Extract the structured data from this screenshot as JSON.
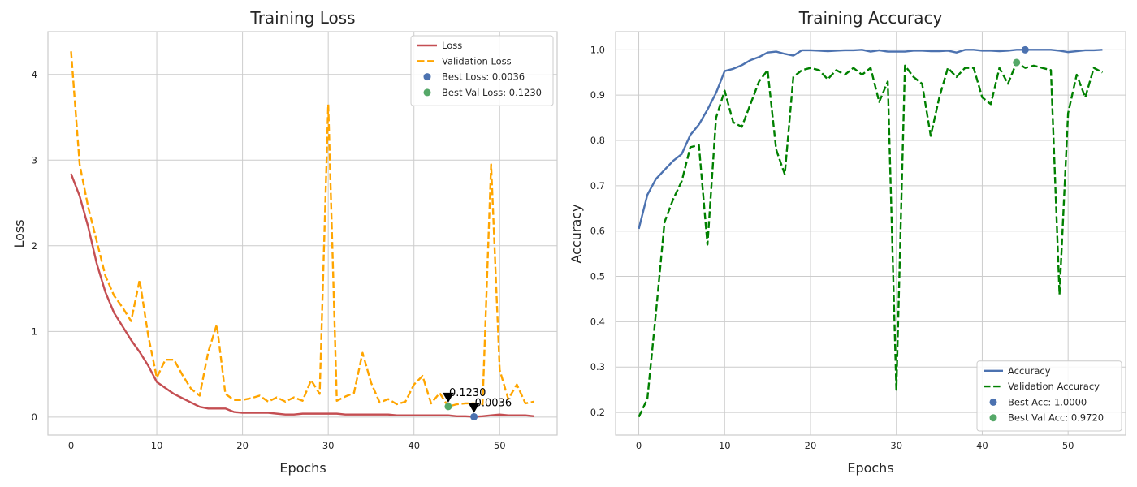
{
  "chart_data": [
    {
      "type": "line",
      "title": "Training Loss",
      "xlabel": "Epochs",
      "ylabel": "Loss",
      "xlim": [
        -2.7,
        56.7
      ],
      "ylim": [
        -0.21,
        4.5
      ],
      "xticks": [
        0,
        10,
        20,
        30,
        40,
        50
      ],
      "xtick_labels": [
        "0",
        "10",
        "20",
        "30",
        "40",
        "50"
      ],
      "yticks": [
        0,
        1,
        2,
        3,
        4
      ],
      "ytick_labels": [
        "0",
        "1",
        "2",
        "3",
        "4"
      ],
      "grid": true,
      "legend_position": "top-right",
      "x": [
        0,
        1,
        2,
        3,
        4,
        5,
        6,
        7,
        8,
        9,
        10,
        11,
        12,
        13,
        14,
        15,
        16,
        17,
        18,
        19,
        20,
        21,
        22,
        23,
        24,
        25,
        26,
        27,
        28,
        29,
        30,
        31,
        32,
        33,
        34,
        35,
        36,
        37,
        38,
        39,
        40,
        41,
        42,
        43,
        44,
        45,
        46,
        47,
        48,
        49,
        50,
        51,
        52,
        53,
        54
      ],
      "series": [
        {
          "name": "Loss",
          "color": "#c44e52",
          "style": "solid",
          "values": [
            2.84,
            2.58,
            2.22,
            1.79,
            1.46,
            1.22,
            1.06,
            0.9,
            0.76,
            0.6,
            0.41,
            0.34,
            0.27,
            0.22,
            0.17,
            0.12,
            0.1,
            0.1,
            0.1,
            0.06,
            0.05,
            0.05,
            0.05,
            0.05,
            0.04,
            0.03,
            0.03,
            0.04,
            0.04,
            0.04,
            0.04,
            0.04,
            0.03,
            0.03,
            0.03,
            0.03,
            0.03,
            0.03,
            0.02,
            0.02,
            0.02,
            0.02,
            0.02,
            0.02,
            0.02,
            0.01,
            0.01,
            0.0036,
            0.01,
            0.02,
            0.03,
            0.02,
            0.02,
            0.02,
            0.01
          ]
        },
        {
          "name": "Validation Loss",
          "color": "#ffa500",
          "style": "dashed",
          "values": [
            4.27,
            2.95,
            2.45,
            2.05,
            1.65,
            1.42,
            1.28,
            1.12,
            1.6,
            0.95,
            0.46,
            0.67,
            0.67,
            0.49,
            0.33,
            0.25,
            0.76,
            1.08,
            0.27,
            0.2,
            0.2,
            0.22,
            0.25,
            0.18,
            0.23,
            0.18,
            0.23,
            0.19,
            0.43,
            0.27,
            3.65,
            0.19,
            0.24,
            0.28,
            0.75,
            0.4,
            0.17,
            0.21,
            0.15,
            0.18,
            0.38,
            0.48,
            0.16,
            0.28,
            0.123,
            0.15,
            0.16,
            0.16,
            0.15,
            2.95,
            0.55,
            0.21,
            0.38,
            0.16,
            0.18
          ]
        }
      ],
      "markers": [
        {
          "name": "Best Loss: 0.0036",
          "x": 47,
          "y": 0.0036,
          "color": "#4c72b0"
        },
        {
          "name": "Best Val Loss: 0.1230",
          "x": 44,
          "y": 0.123,
          "color": "#55a868"
        }
      ],
      "annotations": [
        {
          "text": "0.1230",
          "x": 44,
          "y": 0.123,
          "arrow_tip_y": 0.17
        },
        {
          "text": "0.0036",
          "x": 47,
          "y": 0.0036,
          "arrow_tip_y": 0.05
        }
      ]
    },
    {
      "type": "line",
      "title": "Training Accuracy",
      "xlabel": "Epochs",
      "ylabel": "Accuracy",
      "xlim": [
        -2.7,
        56.7
      ],
      "ylim": [
        0.15,
        1.04
      ],
      "xticks": [
        0,
        10,
        20,
        30,
        40,
        50
      ],
      "xtick_labels": [
        "0",
        "10",
        "20",
        "30",
        "40",
        "50"
      ],
      "yticks": [
        0.2,
        0.3,
        0.4,
        0.5,
        0.6,
        0.7,
        0.8,
        0.9,
        1.0
      ],
      "ytick_labels": [
        "0.2",
        "0.3",
        "0.4",
        "0.5",
        "0.6",
        "0.7",
        "0.8",
        "0.9",
        "1.0"
      ],
      "grid": true,
      "legend_position": "bottom-right",
      "x": [
        0,
        1,
        2,
        3,
        4,
        5,
        6,
        7,
        8,
        9,
        10,
        11,
        12,
        13,
        14,
        15,
        16,
        17,
        18,
        19,
        20,
        21,
        22,
        23,
        24,
        25,
        26,
        27,
        28,
        29,
        30,
        31,
        32,
        33,
        34,
        35,
        36,
        37,
        38,
        39,
        40,
        41,
        42,
        43,
        44,
        45,
        46,
        47,
        48,
        49,
        50,
        51,
        52,
        53,
        54
      ],
      "series": [
        {
          "name": "Accuracy",
          "color": "#4c72b0",
          "style": "solid",
          "values": [
            0.605,
            0.68,
            0.715,
            0.735,
            0.755,
            0.77,
            0.812,
            0.835,
            0.868,
            0.905,
            0.953,
            0.958,
            0.966,
            0.977,
            0.984,
            0.994,
            0.996,
            0.991,
            0.987,
            0.999,
            0.999,
            0.998,
            0.997,
            0.998,
            0.999,
            0.999,
            1.0,
            0.996,
            0.999,
            0.996,
            0.996,
            0.996,
            0.998,
            0.998,
            0.997,
            0.997,
            0.998,
            0.994,
            1.0,
            1.0,
            0.998,
            0.998,
            0.997,
            0.998,
            1.0,
            1.0,
            1.0,
            1.0,
            1.0,
            0.998,
            0.995,
            0.997,
            0.999,
            0.999,
            1.0
          ]
        },
        {
          "name": "Validation Accuracy",
          "color": "#008000",
          "style": "dashed",
          "values": [
            0.19,
            0.23,
            0.42,
            0.62,
            0.67,
            0.71,
            0.785,
            0.79,
            0.57,
            0.85,
            0.91,
            0.84,
            0.83,
            0.88,
            0.93,
            0.955,
            0.78,
            0.725,
            0.94,
            0.955,
            0.96,
            0.955,
            0.935,
            0.955,
            0.945,
            0.96,
            0.945,
            0.96,
            0.885,
            0.93,
            0.25,
            0.965,
            0.94,
            0.925,
            0.81,
            0.895,
            0.96,
            0.94,
            0.96,
            0.96,
            0.895,
            0.88,
            0.96,
            0.925,
            0.972,
            0.96,
            0.965,
            0.96,
            0.955,
            0.46,
            0.86,
            0.945,
            0.895,
            0.96,
            0.95
          ]
        }
      ],
      "markers": [
        {
          "name": "Best Acc: 1.0000",
          "x": 45,
          "y": 1.0,
          "color": "#4c72b0"
        },
        {
          "name": "Best Val Acc: 0.9720",
          "x": 44,
          "y": 0.972,
          "color": "#55a868"
        }
      ]
    }
  ]
}
